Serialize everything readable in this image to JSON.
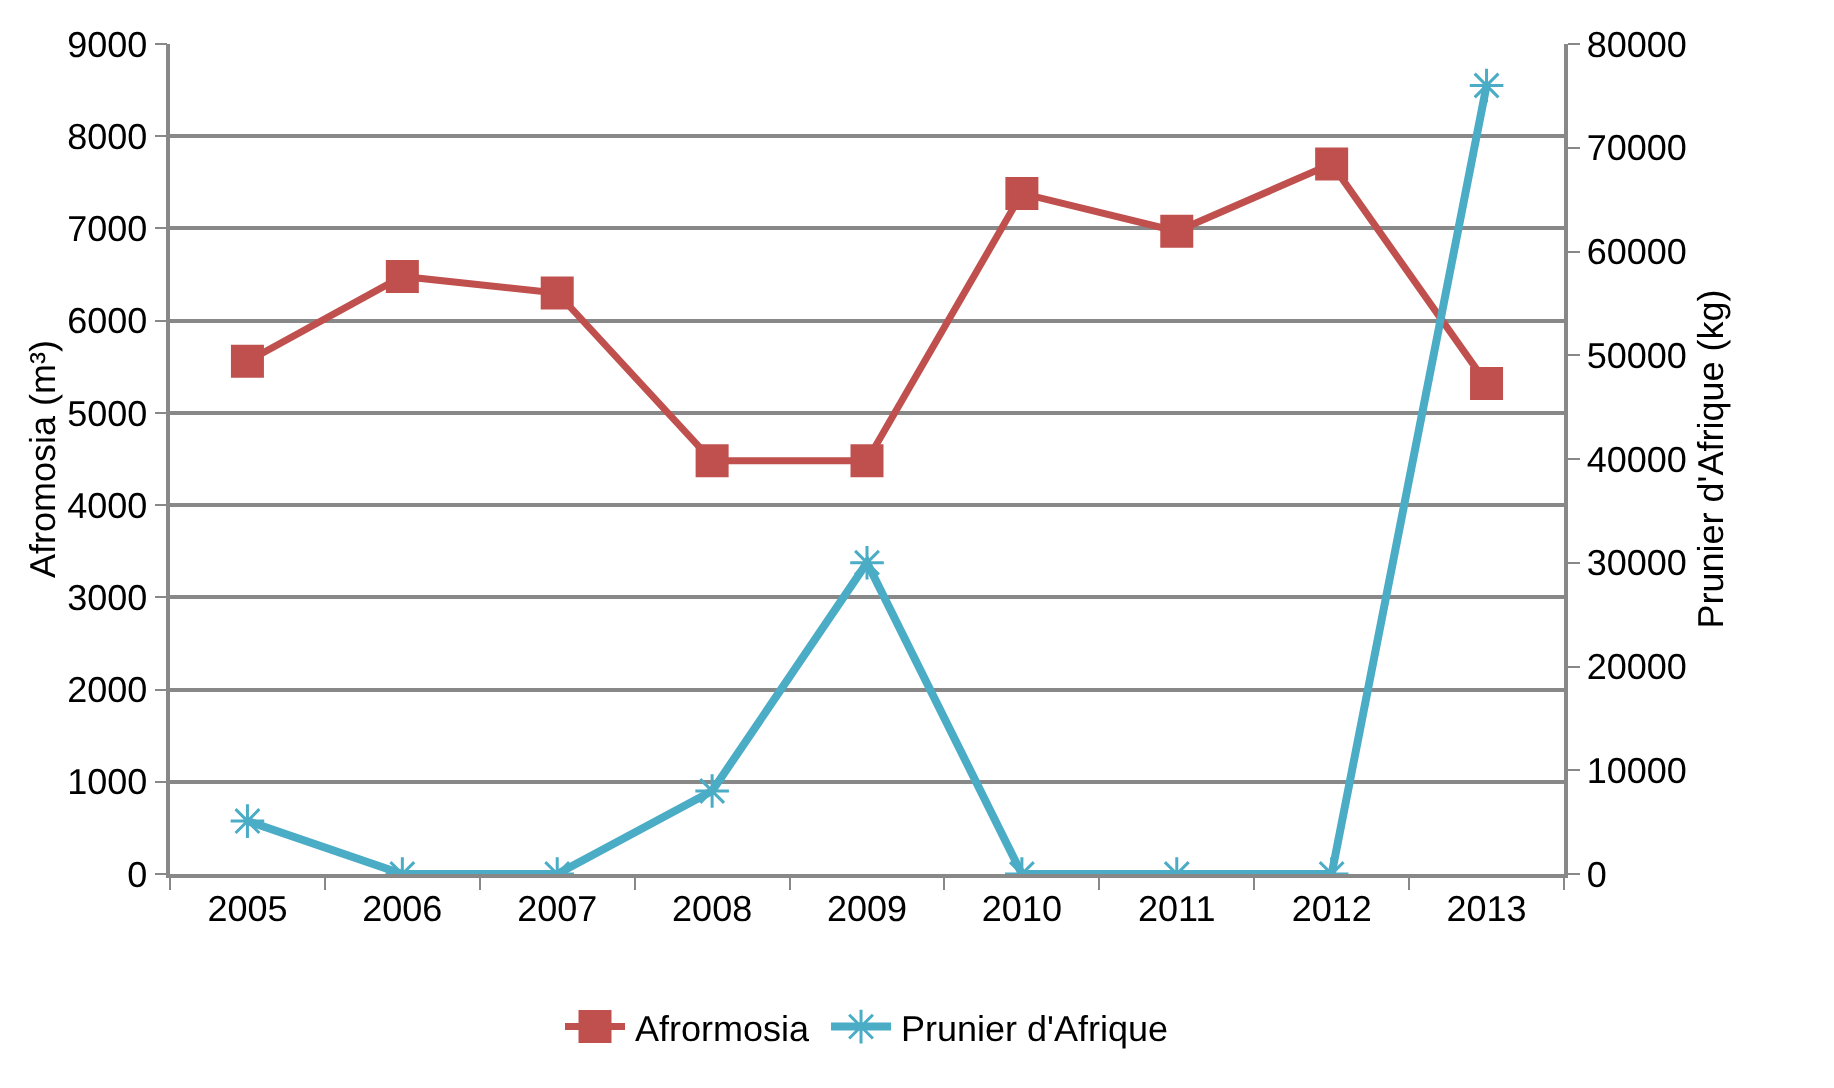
{
  "chart_data": {
    "type": "line",
    "categories": [
      "2005",
      "2006",
      "2007",
      "2008",
      "2009",
      "2010",
      "2011",
      "2012",
      "2013"
    ],
    "series": [
      {
        "name": "Afrormosia",
        "color": "#c0504d",
        "marker": "square",
        "values": [
          5560,
          6480,
          6300,
          4480,
          4480,
          7380,
          6970,
          7700,
          5320
        ]
      },
      {
        "name": "Prunier d'Afrique",
        "color": "#4bacc6",
        "marker": "cross",
        "axis": "y2",
        "values": [
          5100,
          0,
          0,
          8000,
          30000,
          0,
          0,
          0,
          76000
        ]
      }
    ],
    "ylabel": "Afromosia (m³)",
    "y2label": "Prunier d'Afrique (kg)",
    "ylim": [
      0,
      9000
    ],
    "yticks": [
      0,
      1000,
      2000,
      3000,
      4000,
      5000,
      6000,
      7000,
      8000,
      9000
    ],
    "y2lim": [
      0,
      80000
    ],
    "y2ticks": [
      0,
      10000,
      20000,
      30000,
      40000,
      50000,
      60000,
      70000,
      80000
    ],
    "grid": "y",
    "legend": "bottom"
  }
}
